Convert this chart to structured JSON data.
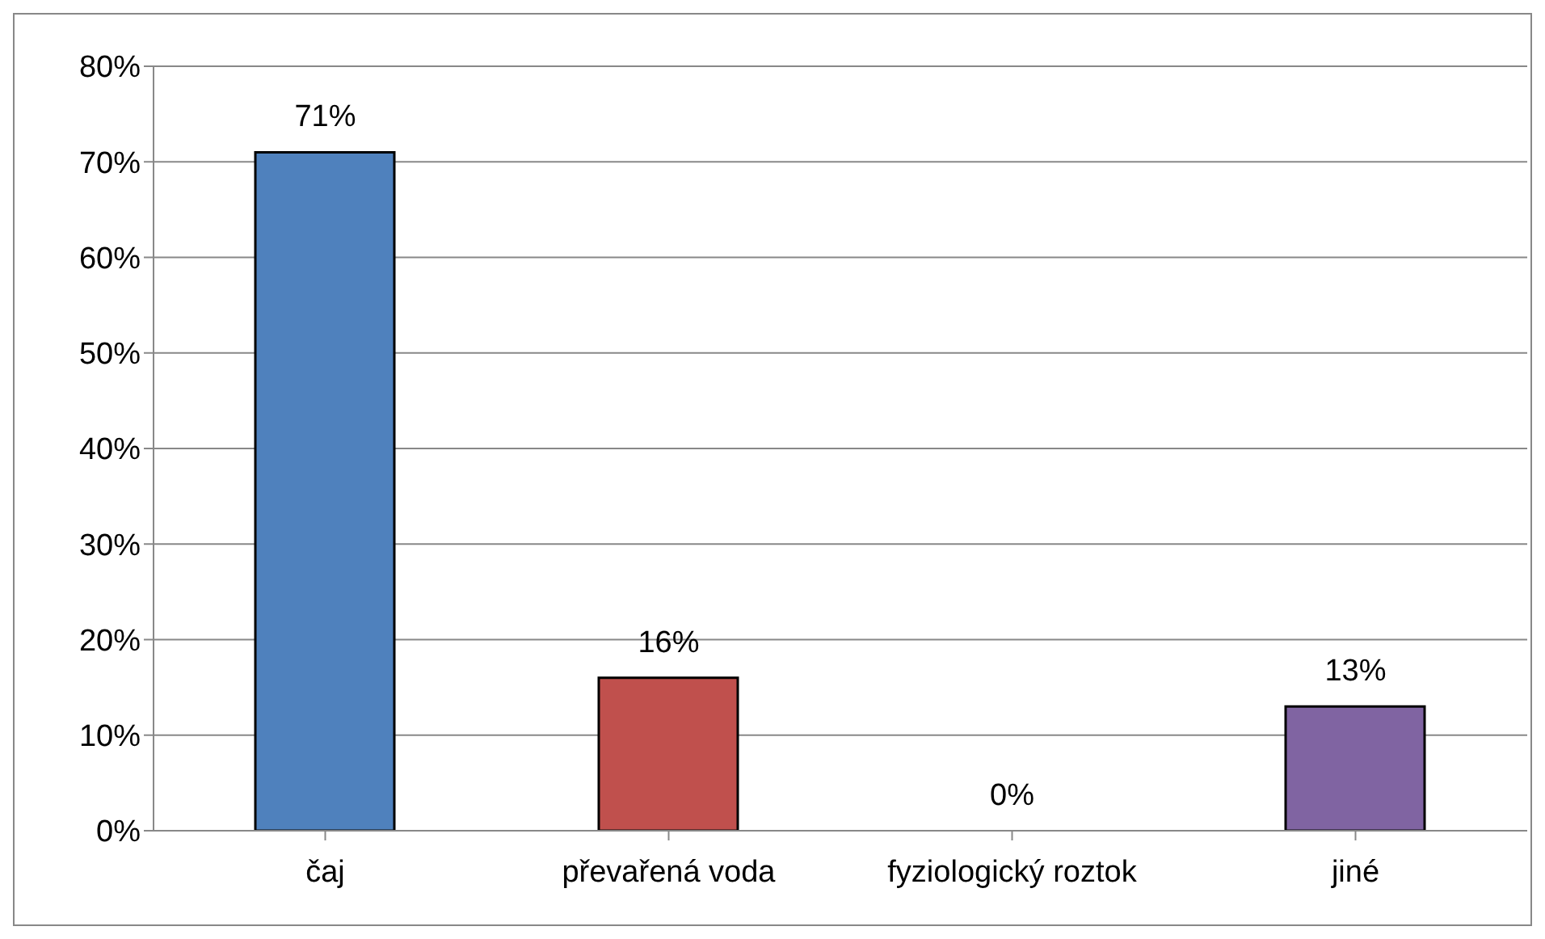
{
  "chart_data": {
    "type": "bar",
    "categories": [
      "čaj",
      "převařená voda",
      "fyziologický roztok",
      "jiné"
    ],
    "values": [
      71,
      16,
      0,
      13
    ],
    "colors": [
      "#4f81bd",
      "#c0504d",
      "#9bbb59",
      "#8064a2"
    ],
    "value_labels": [
      "71%",
      "16%",
      "0%",
      "13%"
    ],
    "ylim": [
      0,
      80
    ],
    "yticks": [
      {
        "value": 0,
        "label": "0%"
      },
      {
        "value": 10,
        "label": "10%"
      },
      {
        "value": 20,
        "label": "20%"
      },
      {
        "value": 30,
        "label": "30%"
      },
      {
        "value": 40,
        "label": "40%"
      },
      {
        "value": 50,
        "label": "50%"
      },
      {
        "value": 60,
        "label": "60%"
      },
      {
        "value": 70,
        "label": "70%"
      },
      {
        "value": 80,
        "label": "80%"
      }
    ],
    "grid": "y",
    "legend": false
  }
}
